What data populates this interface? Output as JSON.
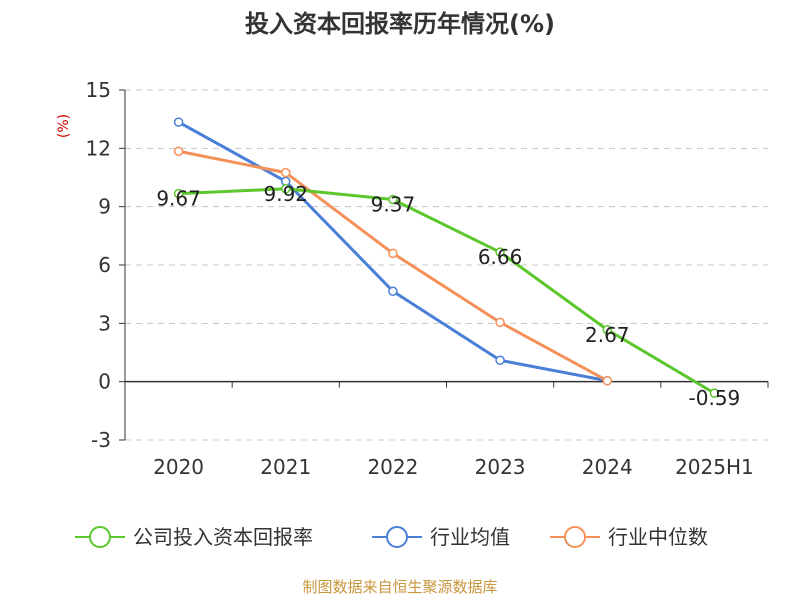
{
  "chart_data": {
    "type": "line",
    "title": "投入资本回报率历年情况(%)",
    "ylabel": "(%)",
    "xlabel": "",
    "categories": [
      "2020",
      "2021",
      "2022",
      "2023",
      "2024",
      "2025H1"
    ],
    "ylim": [
      -3,
      15
    ],
    "yticks": [
      -3,
      0,
      3,
      6,
      9,
      12,
      15
    ],
    "grid": true,
    "legend_position": "bottom",
    "series": [
      {
        "name": "公司投入资本回报率",
        "color": "#5cc62d",
        "values": [
          9.67,
          9.92,
          9.37,
          6.66,
          2.67,
          -0.59
        ],
        "labels": [
          "9.67",
          "9.92",
          "9.37",
          "6.66",
          "2.67",
          "-0.59"
        ]
      },
      {
        "name": "行业均值",
        "color": "#4a7fd8",
        "values": [
          13.35,
          10.3,
          4.65,
          1.1,
          0.05,
          null
        ]
      },
      {
        "name": "行业中位数",
        "color": "#f39159",
        "values": [
          11.85,
          10.75,
          6.6,
          3.05,
          0.05,
          null
        ]
      }
    ]
  },
  "source": "制图数据来自恒生聚源数据库"
}
